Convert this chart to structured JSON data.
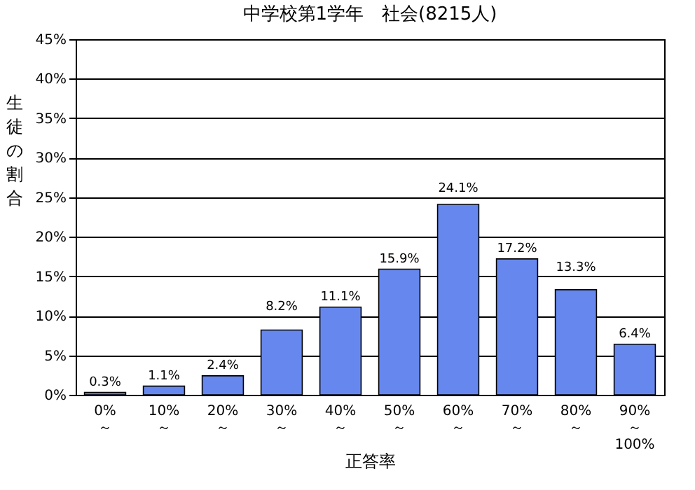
{
  "chart_data": {
    "type": "bar",
    "title": "中学校第1学年　社会(8215人)",
    "xlabel": "正答率",
    "ylabel": "生徒の割合",
    "categories": [
      "0%\n～",
      "10%\n～",
      "20%\n～",
      "30%\n～",
      "40%\n～",
      "50%\n～",
      "60%\n～",
      "70%\n～",
      "80%\n～",
      "90%\n～\n100%"
    ],
    "values": [
      0.3,
      1.1,
      2.4,
      8.2,
      11.1,
      15.9,
      24.1,
      17.2,
      13.3,
      6.4
    ],
    "value_labels": [
      "0.3%",
      "1.1%",
      "2.4%",
      "8.2%",
      "11.1%",
      "15.9%",
      "24.1%",
      "17.2%",
      "13.3%",
      "6.4%"
    ],
    "color": "#6688ee",
    "ylim": [
      0,
      45
    ],
    "yticks": [
      {
        "value": 0,
        "label": "0%"
      },
      {
        "value": 5,
        "label": "5%"
      },
      {
        "value": 10,
        "label": "10%"
      },
      {
        "value": 15,
        "label": "15%"
      },
      {
        "value": 20,
        "label": "20%"
      },
      {
        "value": 25,
        "label": "25%"
      },
      {
        "value": 30,
        "label": "30%"
      },
      {
        "value": 35,
        "label": "35%"
      },
      {
        "value": 40,
        "label": "40%"
      },
      {
        "value": 45,
        "label": "45%"
      }
    ],
    "grid": "y"
  }
}
